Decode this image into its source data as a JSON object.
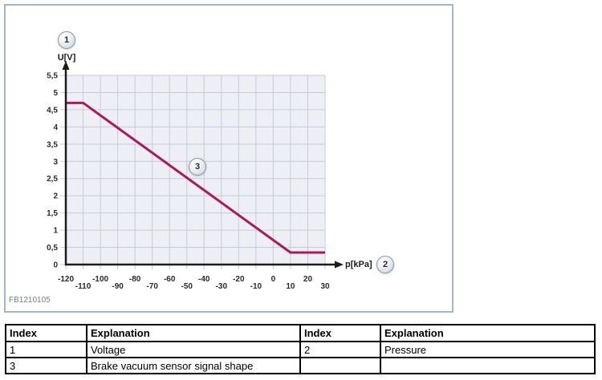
{
  "figure": {
    "code": "FB1210105"
  },
  "callouts": {
    "voltage": "1",
    "pressure": "2",
    "signal": "3"
  },
  "colors": {
    "panel_border": "#a3b6ca",
    "signal_line": "#ac1a5c",
    "plot_background": "#edeff5",
    "grid_line": "#c5ccda",
    "axis": "#1c1c1c"
  },
  "chart_data": {
    "type": "line",
    "title": "",
    "xlabel": "p[kPa]",
    "ylabel": "U[V]",
    "xlim": [
      -120,
      30
    ],
    "ylim": [
      0,
      5.5
    ],
    "grid": true,
    "legend": "none",
    "plot_bg": "#edeff5",
    "grid_color": "#c5ccda",
    "axis_color": "#1c1c1c",
    "xticks": {
      "values": [
        -120,
        -110,
        -100,
        -90,
        -80,
        -70,
        -60,
        -50,
        -40,
        -30,
        -20,
        -10,
        0,
        10,
        20,
        30
      ],
      "labels": [
        "-120",
        "-110",
        "-100",
        "-90",
        "-80",
        "-70",
        "-60",
        "-50",
        "-40",
        "-30",
        "-20",
        "-10",
        "0",
        "10",
        "20",
        "30"
      ]
    },
    "yticks": {
      "values": [
        0,
        0.5,
        1,
        1.5,
        2,
        2.5,
        3,
        3.5,
        4,
        4.5,
        5,
        5.5
      ],
      "labels": [
        "0",
        "0,5",
        "1",
        "1,5",
        "2",
        "2,5",
        "3",
        "3,5",
        "4",
        "4,5",
        "5",
        "5,5"
      ]
    },
    "series": [
      {
        "name": "Brake vacuum sensor signal shape",
        "color": "#ac1a5c",
        "points": [
          [
            -120,
            4.7
          ],
          [
            -110,
            4.7
          ],
          [
            10,
            0.35
          ],
          [
            30,
            0.35
          ]
        ]
      }
    ]
  },
  "table": {
    "headers": [
      "Index",
      "Explanation",
      "Index",
      "Explanation"
    ],
    "rows": [
      [
        "1",
        "Voltage",
        "2",
        "Pressure"
      ],
      [
        "3",
        "Brake vacuum sensor signal shape",
        "",
        ""
      ]
    ]
  }
}
